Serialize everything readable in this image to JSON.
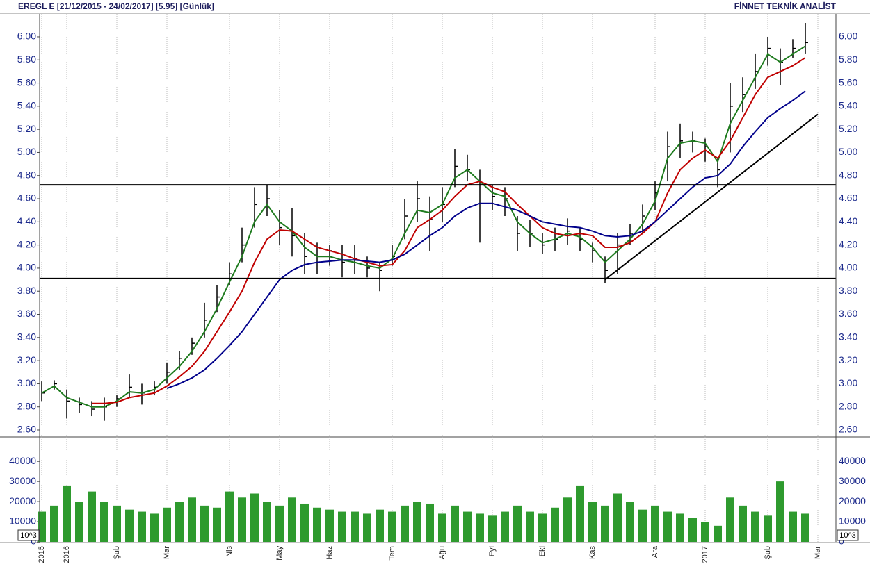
{
  "chart_data": [
    {
      "type": "ohlc",
      "title": "EREGL E  [21/12/2015 - 24/02/2017]  [5.95]  [Günlük]",
      "annotation": "FİNNET TEKNİK ANALİST",
      "categories": [
        "2015",
        null,
        "2016",
        null,
        null,
        null,
        "Şub",
        null,
        null,
        null,
        "Mar",
        null,
        null,
        null,
        null,
        "Nis",
        null,
        null,
        null,
        "May",
        null,
        null,
        null,
        "Haz",
        null,
        null,
        null,
        null,
        "Tem",
        null,
        null,
        null,
        "Ağu",
        null,
        null,
        null,
        "Eyl",
        null,
        null,
        null,
        "Eki",
        null,
        null,
        null,
        "Kas",
        null,
        null,
        null,
        null,
        "Ara",
        null,
        null,
        null,
        "2017",
        null,
        null,
        null,
        null,
        "Şub",
        null,
        null,
        null,
        "Mar"
      ],
      "high": [
        3.02,
        3.03,
        2.95,
        2.88,
        2.85,
        2.88,
        2.9,
        3.08,
        3.0,
        3.02,
        3.18,
        3.28,
        3.4,
        3.7,
        3.85,
        4.05,
        4.35,
        4.7,
        4.72,
        4.5,
        4.52,
        4.3,
        4.22,
        4.2,
        4.2,
        4.2,
        4.1,
        4.05,
        4.2,
        4.6,
        4.75,
        4.62,
        4.7,
        5.03,
        4.98,
        4.85,
        4.72,
        4.7,
        4.45,
        4.42,
        4.3,
        4.35,
        4.43,
        4.35,
        4.22,
        4.1,
        4.3,
        4.38,
        4.55,
        4.75,
        5.18,
        5.25,
        5.18,
        5.12,
        4.95,
        5.6,
        5.65,
        5.85,
        6.0,
        5.9,
        5.98,
        6.12,
        null
      ],
      "low": [
        2.85,
        2.95,
        2.7,
        2.75,
        2.72,
        2.68,
        2.8,
        2.88,
        2.82,
        2.9,
        3.0,
        3.12,
        3.25,
        3.4,
        3.62,
        3.85,
        4.05,
        4.35,
        4.45,
        4.2,
        4.1,
        3.95,
        3.95,
        4.02,
        3.92,
        3.95,
        3.92,
        3.8,
        4.02,
        4.25,
        4.4,
        4.15,
        4.4,
        4.7,
        4.75,
        4.22,
        4.5,
        4.45,
        4.15,
        4.18,
        4.12,
        4.15,
        4.2,
        4.15,
        4.05,
        3.87,
        3.95,
        4.2,
        4.3,
        4.5,
        4.75,
        4.95,
        5.0,
        4.92,
        4.7,
        5.0,
        5.35,
        5.55,
        5.75,
        5.58,
        5.82,
        5.85,
        null
      ],
      "close": [
        2.92,
        3.0,
        2.85,
        2.82,
        2.78,
        2.8,
        2.87,
        2.97,
        2.92,
        2.97,
        3.1,
        3.22,
        3.35,
        3.55,
        3.75,
        3.95,
        4.2,
        4.55,
        4.6,
        4.35,
        4.28,
        4.1,
        4.1,
        4.15,
        4.05,
        4.08,
        4.0,
        3.98,
        4.1,
        4.45,
        4.6,
        4.42,
        4.55,
        4.88,
        4.85,
        4.72,
        4.62,
        4.6,
        4.3,
        4.3,
        4.2,
        4.25,
        4.32,
        4.25,
        4.15,
        3.98,
        4.2,
        4.3,
        4.45,
        4.65,
        5.05,
        5.1,
        5.1,
        5.05,
        4.85,
        5.4,
        5.5,
        5.7,
        5.9,
        5.78,
        5.9,
        5.95,
        null
      ],
      "color": "#000000",
      "series": [
        {
          "color": "#1e7b1e",
          "values": [
            2.92,
            2.98,
            2.88,
            2.84,
            2.8,
            2.8,
            2.85,
            2.93,
            2.92,
            2.95,
            3.05,
            3.15,
            3.28,
            3.45,
            3.65,
            3.88,
            4.1,
            4.4,
            4.55,
            4.4,
            4.32,
            4.18,
            4.1,
            4.1,
            4.07,
            4.05,
            4.02,
            4.0,
            4.08,
            4.3,
            4.5,
            4.48,
            4.55,
            4.78,
            4.85,
            4.75,
            4.65,
            4.62,
            4.4,
            4.3,
            4.22,
            4.25,
            4.3,
            4.27,
            4.18,
            4.05,
            4.15,
            4.25,
            4.38,
            4.58,
            4.95,
            5.08,
            5.1,
            5.08,
            4.92,
            5.25,
            5.45,
            5.65,
            5.85,
            5.78,
            5.85,
            5.92,
            null
          ]
        },
        {
          "color": "#c00000",
          "values": [
            null,
            null,
            null,
            null,
            2.83,
            2.83,
            2.84,
            2.88,
            2.9,
            2.92,
            2.98,
            3.06,
            3.15,
            3.28,
            3.45,
            3.62,
            3.8,
            4.05,
            4.25,
            4.33,
            4.32,
            4.25,
            4.18,
            4.15,
            4.12,
            4.08,
            4.05,
            4.02,
            4.03,
            4.15,
            4.35,
            4.42,
            4.5,
            4.62,
            4.72,
            4.75,
            4.7,
            4.66,
            4.55,
            4.45,
            4.35,
            4.3,
            4.28,
            4.3,
            4.28,
            4.18,
            4.18,
            4.22,
            4.3,
            4.4,
            4.65,
            4.85,
            4.95,
            5.02,
            4.95,
            5.1,
            5.3,
            5.5,
            5.65,
            5.7,
            5.75,
            5.82,
            null
          ]
        },
        {
          "color": "#00008b",
          "values": [
            null,
            null,
            null,
            null,
            null,
            null,
            null,
            null,
            null,
            null,
            2.96,
            3.0,
            3.05,
            3.12,
            3.22,
            3.33,
            3.45,
            3.6,
            3.75,
            3.9,
            3.98,
            4.03,
            4.05,
            4.06,
            4.07,
            4.07,
            4.06,
            4.05,
            4.07,
            4.12,
            4.2,
            4.28,
            4.35,
            4.45,
            4.52,
            4.56,
            4.56,
            4.53,
            4.5,
            4.45,
            4.4,
            4.38,
            4.36,
            4.35,
            4.32,
            4.28,
            4.27,
            4.28,
            4.32,
            4.4,
            4.5,
            4.6,
            4.7,
            4.78,
            4.8,
            4.9,
            5.05,
            5.18,
            5.3,
            5.38,
            5.45,
            5.53,
            null
          ]
        }
      ],
      "hlines": [
        4.72,
        3.91
      ],
      "trendline": {
        "x": [
          45,
          62
        ],
        "values": [
          3.9,
          5.33
        ]
      },
      "ylim": [
        2.546,
        6.198
      ],
      "yticks": [
        {
          "value": 2.6,
          "label": "2.60"
        },
        {
          "value": 2.8,
          "label": "2.80"
        },
        {
          "value": 3.0,
          "label": "3.00"
        },
        {
          "value": 3.2,
          "label": "3.20"
        },
        {
          "value": 3.4,
          "label": "3.40"
        },
        {
          "value": 3.6,
          "label": "3.60"
        },
        {
          "value": 3.8,
          "label": "3.80"
        },
        {
          "value": 4.0,
          "label": "4.00"
        },
        {
          "value": 4.2,
          "label": "4.20"
        },
        {
          "value": 4.4,
          "label": "4.40"
        },
        {
          "value": 4.6,
          "label": "4.60"
        },
        {
          "value": 4.8,
          "label": "4.80"
        },
        {
          "value": 5.0,
          "label": "5.00"
        },
        {
          "value": 5.2,
          "label": "5.20"
        },
        {
          "value": 5.4,
          "label": "5.40"
        },
        {
          "value": 5.6,
          "label": "5.60"
        },
        {
          "value": 5.8,
          "label": "5.80"
        },
        {
          "value": 6.0,
          "label": "6.00"
        }
      ]
    },
    {
      "type": "bar",
      "values": [
        15000,
        18000,
        28000,
        20000,
        25000,
        20000,
        18000,
        16000,
        15000,
        14000,
        17000,
        20000,
        22000,
        18000,
        17000,
        25000,
        22000,
        24000,
        20000,
        18000,
        22000,
        19000,
        17000,
        16000,
        15000,
        15000,
        14000,
        16000,
        15000,
        18000,
        20000,
        19000,
        14000,
        18000,
        15000,
        14000,
        13000,
        15000,
        18000,
        15000,
        14000,
        17000,
        22000,
        28000,
        20000,
        18000,
        24000,
        20000,
        16000,
        18000,
        15000,
        14000,
        12000,
        10000,
        8000,
        22000,
        18000,
        15000,
        13000,
        30000,
        15000,
        14000,
        null
      ],
      "color": "#2e9a2e",
      "unit_label": "10^3",
      "ylim": [
        0,
        51800
      ],
      "yticks": [
        0,
        10000,
        20000,
        30000,
        40000
      ]
    }
  ]
}
